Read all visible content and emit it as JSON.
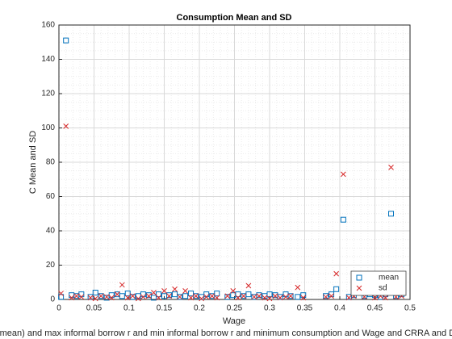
{
  "chart_data": {
    "type": "scatter",
    "title": "Consumption Mean and SD",
    "x_label": "Wage",
    "y_label": "C Mean and SD",
    "caption": "(mean) and max informal borrow r and min informal borrow r and minimum consumption and Wage and CRRA and D",
    "x": [
      0.003,
      0.01,
      0.018,
      0.025,
      0.032,
      0.045,
      0.052,
      0.06,
      0.068,
      0.075,
      0.083,
      0.09,
      0.098,
      0.105,
      0.113,
      0.12,
      0.128,
      0.135,
      0.142,
      0.15,
      0.157,
      0.165,
      0.172,
      0.18,
      0.188,
      0.195,
      0.203,
      0.21,
      0.218,
      0.225,
      0.24,
      0.248,
      0.255,
      0.263,
      0.27,
      0.278,
      0.285,
      0.293,
      0.3,
      0.308,
      0.315,
      0.323,
      0.33,
      0.34,
      0.348,
      0.38,
      0.388,
      0.395,
      0.405,
      0.413,
      0.42,
      0.428,
      0.435,
      0.443,
      0.45,
      0.458,
      0.465,
      0.473,
      0.48,
      0.488
    ],
    "series": [
      {
        "name": "mean",
        "color": "#0072bd",
        "marker": "square",
        "values": [
          1.5,
          151,
          2.5,
          2,
          3,
          1.5,
          4,
          2,
          1,
          2.5,
          3,
          2,
          3.5,
          1.5,
          2,
          3,
          2.5,
          1,
          3,
          2,
          2.5,
          3,
          1.5,
          2,
          3.5,
          2,
          1.5,
          3,
          2,
          3.5,
          1.5,
          2.5,
          3,
          2,
          3,
          1.5,
          2.5,
          2,
          3,
          2.5,
          1.5,
          3,
          2,
          1.5,
          2.5,
          2,
          3,
          6,
          46.5,
          1.5,
          2.5,
          4,
          2,
          3,
          2.5,
          1.5,
          3,
          50,
          2,
          3
        ]
      },
      {
        "name": "sd",
        "color": "#d62728",
        "marker": "x",
        "values": [
          3.5,
          101,
          1,
          2,
          1.5,
          1,
          0.5,
          2,
          1.5,
          1,
          3,
          8.5,
          1,
          2,
          0.5,
          1.5,
          2,
          4,
          1,
          5,
          2,
          6,
          1.5,
          5,
          1,
          2,
          0.5,
          1.5,
          2,
          1,
          2,
          5,
          1,
          2,
          8,
          1.5,
          2,
          1,
          0.5,
          2,
          1,
          1.5,
          2,
          7,
          1,
          1.5,
          2,
          15,
          73,
          1,
          2,
          9,
          1.5,
          7.5,
          1,
          2,
          1,
          77,
          1.5,
          2
        ]
      }
    ],
    "xlim": [
      0,
      0.5
    ],
    "xticks": [
      0,
      0.05,
      0.1,
      0.15,
      0.2,
      0.25,
      0.3,
      0.35,
      0.4,
      0.45,
      0.5
    ],
    "ylim": [
      0,
      160
    ],
    "yticks": [
      0,
      20,
      40,
      60,
      80,
      100,
      120,
      140,
      160
    ],
    "grid": true,
    "minor_grid": true,
    "legend": "southeast"
  }
}
